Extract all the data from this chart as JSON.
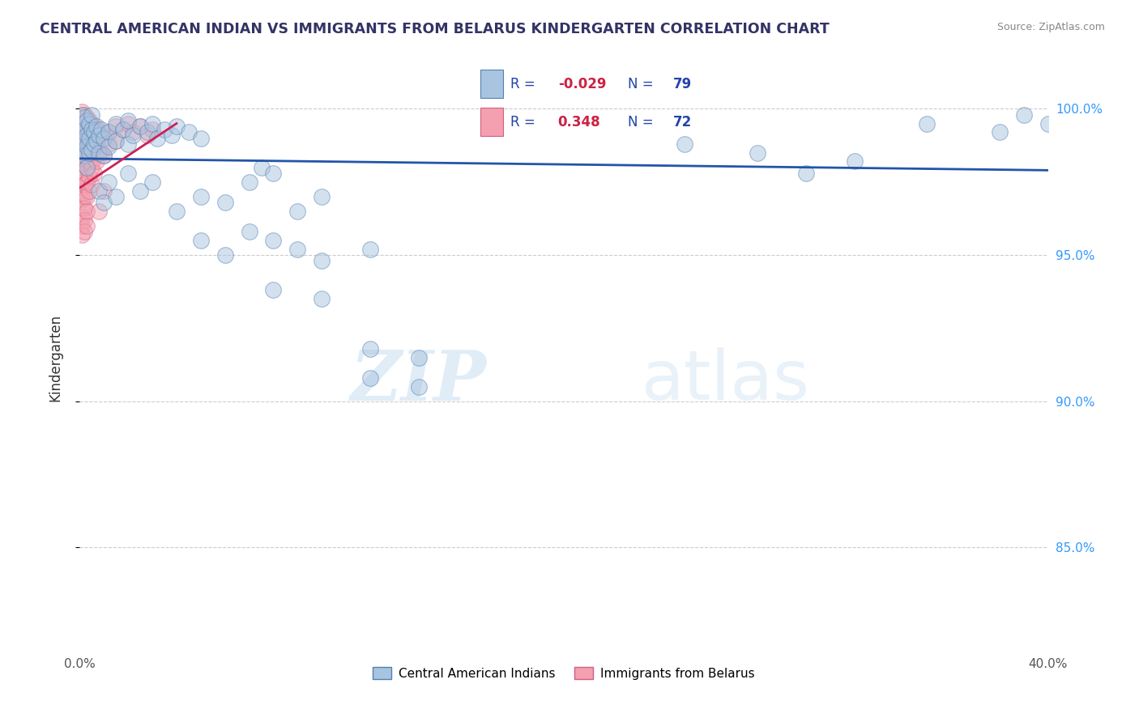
{
  "title": "CENTRAL AMERICAN INDIAN VS IMMIGRANTS FROM BELARUS KINDERGARTEN CORRELATION CHART",
  "source": "Source: ZipAtlas.com",
  "ylabel": "Kindergarten",
  "xlim": [
    0.0,
    0.4
  ],
  "ylim": [
    81.5,
    101.5
  ],
  "blue_R": -0.029,
  "blue_N": 79,
  "pink_R": 0.348,
  "pink_N": 72,
  "legend_label_blue": "Central American Indians",
  "legend_label_pink": "Immigrants from Belarus",
  "watermark_zip": "ZIP",
  "watermark_atlas": "atlas",
  "blue_color": "#a8c4e0",
  "pink_color": "#f4a0b0",
  "blue_edge_color": "#5580b0",
  "pink_edge_color": "#d06080",
  "blue_line_color": "#2255aa",
  "pink_line_color": "#cc2255",
  "y_ticks": [
    85.0,
    90.0,
    95.0,
    100.0
  ],
  "blue_scatter": [
    [
      0.001,
      99.8
    ],
    [
      0.001,
      99.5
    ],
    [
      0.001,
      99.0
    ],
    [
      0.001,
      98.5
    ],
    [
      0.002,
      99.7
    ],
    [
      0.002,
      99.3
    ],
    [
      0.002,
      98.9
    ],
    [
      0.002,
      98.4
    ],
    [
      0.003,
      99.6
    ],
    [
      0.003,
      99.1
    ],
    [
      0.003,
      98.7
    ],
    [
      0.003,
      98.0
    ],
    [
      0.004,
      99.5
    ],
    [
      0.004,
      99.0
    ],
    [
      0.004,
      98.5
    ],
    [
      0.005,
      99.8
    ],
    [
      0.005,
      99.3
    ],
    [
      0.005,
      98.6
    ],
    [
      0.006,
      99.2
    ],
    [
      0.006,
      98.8
    ],
    [
      0.007,
      99.4
    ],
    [
      0.007,
      98.9
    ],
    [
      0.008,
      99.1
    ],
    [
      0.008,
      98.5
    ],
    [
      0.009,
      99.3
    ],
    [
      0.01,
      99.0
    ],
    [
      0.01,
      98.4
    ],
    [
      0.012,
      99.2
    ],
    [
      0.012,
      98.7
    ],
    [
      0.015,
      99.5
    ],
    [
      0.015,
      98.9
    ],
    [
      0.018,
      99.3
    ],
    [
      0.02,
      99.6
    ],
    [
      0.02,
      98.8
    ],
    [
      0.022,
      99.1
    ],
    [
      0.025,
      99.4
    ],
    [
      0.028,
      99.2
    ],
    [
      0.03,
      99.5
    ],
    [
      0.032,
      99.0
    ],
    [
      0.035,
      99.3
    ],
    [
      0.038,
      99.1
    ],
    [
      0.04,
      99.4
    ],
    [
      0.045,
      99.2
    ],
    [
      0.05,
      99.0
    ],
    [
      0.008,
      97.2
    ],
    [
      0.01,
      96.8
    ],
    [
      0.012,
      97.5
    ],
    [
      0.015,
      97.0
    ],
    [
      0.02,
      97.8
    ],
    [
      0.025,
      97.2
    ],
    [
      0.03,
      97.5
    ],
    [
      0.04,
      96.5
    ],
    [
      0.05,
      97.0
    ],
    [
      0.06,
      96.8
    ],
    [
      0.07,
      97.5
    ],
    [
      0.075,
      98.0
    ],
    [
      0.08,
      97.8
    ],
    [
      0.09,
      96.5
    ],
    [
      0.1,
      97.0
    ],
    [
      0.05,
      95.5
    ],
    [
      0.07,
      95.8
    ],
    [
      0.09,
      95.2
    ],
    [
      0.06,
      95.0
    ],
    [
      0.08,
      95.5
    ],
    [
      0.1,
      94.8
    ],
    [
      0.12,
      95.2
    ],
    [
      0.08,
      93.8
    ],
    [
      0.1,
      93.5
    ],
    [
      0.12,
      91.8
    ],
    [
      0.14,
      91.5
    ],
    [
      0.12,
      90.8
    ],
    [
      0.14,
      90.5
    ],
    [
      0.25,
      98.8
    ],
    [
      0.28,
      98.5
    ],
    [
      0.3,
      97.8
    ],
    [
      0.32,
      98.2
    ],
    [
      0.35,
      99.5
    ],
    [
      0.38,
      99.2
    ],
    [
      0.39,
      99.8
    ],
    [
      0.4,
      99.5
    ]
  ],
  "pink_scatter": [
    [
      0.001,
      99.9
    ],
    [
      0.001,
      99.6
    ],
    [
      0.001,
      99.3
    ],
    [
      0.001,
      99.0
    ],
    [
      0.001,
      98.7
    ],
    [
      0.001,
      98.4
    ],
    [
      0.001,
      98.1
    ],
    [
      0.001,
      97.8
    ],
    [
      0.001,
      97.5
    ],
    [
      0.001,
      97.2
    ],
    [
      0.001,
      96.9
    ],
    [
      0.001,
      96.6
    ],
    [
      0.001,
      96.3
    ],
    [
      0.001,
      96.0
    ],
    [
      0.001,
      95.7
    ],
    [
      0.002,
      99.8
    ],
    [
      0.002,
      99.5
    ],
    [
      0.002,
      99.1
    ],
    [
      0.002,
      98.8
    ],
    [
      0.002,
      98.5
    ],
    [
      0.002,
      98.1
    ],
    [
      0.002,
      97.8
    ],
    [
      0.002,
      97.4
    ],
    [
      0.002,
      97.0
    ],
    [
      0.002,
      96.6
    ],
    [
      0.002,
      96.2
    ],
    [
      0.002,
      95.8
    ],
    [
      0.003,
      99.7
    ],
    [
      0.003,
      99.3
    ],
    [
      0.003,
      98.9
    ],
    [
      0.003,
      98.5
    ],
    [
      0.003,
      98.0
    ],
    [
      0.003,
      97.5
    ],
    [
      0.003,
      97.0
    ],
    [
      0.003,
      96.5
    ],
    [
      0.003,
      96.0
    ],
    [
      0.004,
      99.6
    ],
    [
      0.004,
      99.2
    ],
    [
      0.004,
      98.7
    ],
    [
      0.004,
      98.2
    ],
    [
      0.004,
      97.7
    ],
    [
      0.004,
      97.2
    ],
    [
      0.005,
      99.5
    ],
    [
      0.005,
      99.0
    ],
    [
      0.005,
      98.5
    ],
    [
      0.005,
      98.0
    ],
    [
      0.005,
      97.4
    ],
    [
      0.006,
      99.4
    ],
    [
      0.006,
      98.9
    ],
    [
      0.006,
      98.3
    ],
    [
      0.006,
      97.8
    ],
    [
      0.007,
      99.3
    ],
    [
      0.007,
      98.7
    ],
    [
      0.007,
      98.2
    ],
    [
      0.008,
      99.2
    ],
    [
      0.008,
      98.6
    ],
    [
      0.009,
      99.1
    ],
    [
      0.009,
      98.5
    ],
    [
      0.01,
      99.0
    ],
    [
      0.01,
      98.4
    ],
    [
      0.012,
      99.2
    ],
    [
      0.012,
      98.8
    ],
    [
      0.015,
      99.4
    ],
    [
      0.015,
      98.9
    ],
    [
      0.018,
      99.3
    ],
    [
      0.02,
      99.5
    ],
    [
      0.022,
      99.2
    ],
    [
      0.025,
      99.4
    ],
    [
      0.028,
      99.1
    ],
    [
      0.03,
      99.3
    ],
    [
      0.008,
      96.5
    ],
    [
      0.01,
      97.2
    ]
  ],
  "pink_line_x": [
    0.0,
    0.04
  ],
  "blue_line_x": [
    0.0,
    0.4
  ]
}
